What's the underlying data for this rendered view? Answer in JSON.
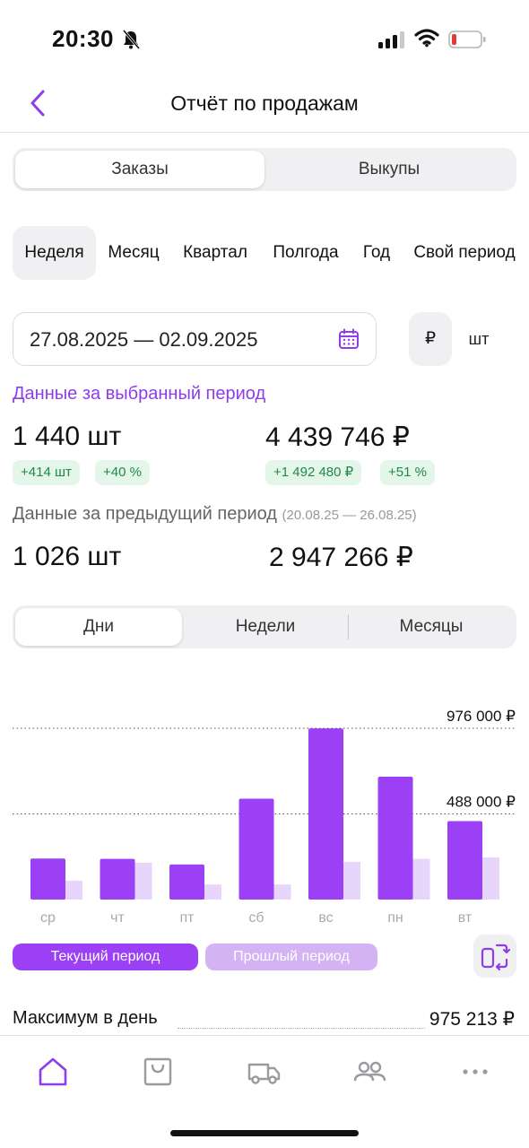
{
  "status_bar": {
    "time": "20:30"
  },
  "header": {
    "title": "Отчёт по продажам"
  },
  "main_tabs": [
    {
      "label": "Заказы",
      "active": true
    },
    {
      "label": "Выкупы",
      "active": false
    }
  ],
  "periods": [
    {
      "label": "Неделя",
      "active": true
    },
    {
      "label": "Месяц"
    },
    {
      "label": "Квартал"
    },
    {
      "label": "Полгода"
    },
    {
      "label": "Год"
    },
    {
      "label": "Свой период"
    }
  ],
  "date_range": {
    "value": "27.08.2025 — 02.09.2025"
  },
  "units": {
    "currency": "₽",
    "pieces": "шт"
  },
  "current": {
    "title": "Данные за выбранный период",
    "qty": "1 440 шт",
    "qty_delta": "+414 шт",
    "qty_pct": "+40 %",
    "sum": "4 439 746 ₽",
    "sum_delta": "+1 492 480 ₽",
    "sum_pct": "+51 %"
  },
  "previous": {
    "title": "Данные за предыдущий период",
    "range": "(20.08.25 — 26.08.25)",
    "qty": "1 026 шт",
    "sum": "2 947 266 ₽"
  },
  "granularity": [
    {
      "label": "Дни",
      "active": true
    },
    {
      "label": "Недели"
    },
    {
      "label": "Месяцы"
    }
  ],
  "chart_data": {
    "type": "bar",
    "categories": [
      "ср",
      "чт",
      "пт",
      "сб",
      "вс",
      "пн",
      "вт"
    ],
    "series": [
      {
        "name": "Текущий период",
        "color": "#9b40f5",
        "values": [
          234000,
          232000,
          200000,
          575000,
          975213,
          700000,
          447000
        ]
      },
      {
        "name": "Прошлый период",
        "color": "#e8d5fb",
        "values": [
          108000,
          210000,
          86000,
          86000,
          215000,
          232000,
          240000
        ]
      }
    ],
    "gridlines": [
      {
        "value": 976000,
        "label": "976 000 ₽"
      },
      {
        "value": 488000,
        "label": "488 000 ₽"
      }
    ],
    "ylim": [
      0,
      976000
    ]
  },
  "legend": {
    "current": "Текущий период",
    "previous": "Прошлый период"
  },
  "summary": {
    "max_label": "Максимум в день",
    "max_value": "975 213 ₽"
  },
  "nav": [
    "home-icon",
    "bag-icon",
    "truck-icon",
    "users-icon",
    "more-icon"
  ],
  "colors": {
    "accent": "#8e3de8",
    "bar_current": "#9b40f5",
    "bar_previous": "#e8d5fb",
    "positive_bg": "#e4f5ea",
    "positive_text": "#1f8a4a"
  }
}
